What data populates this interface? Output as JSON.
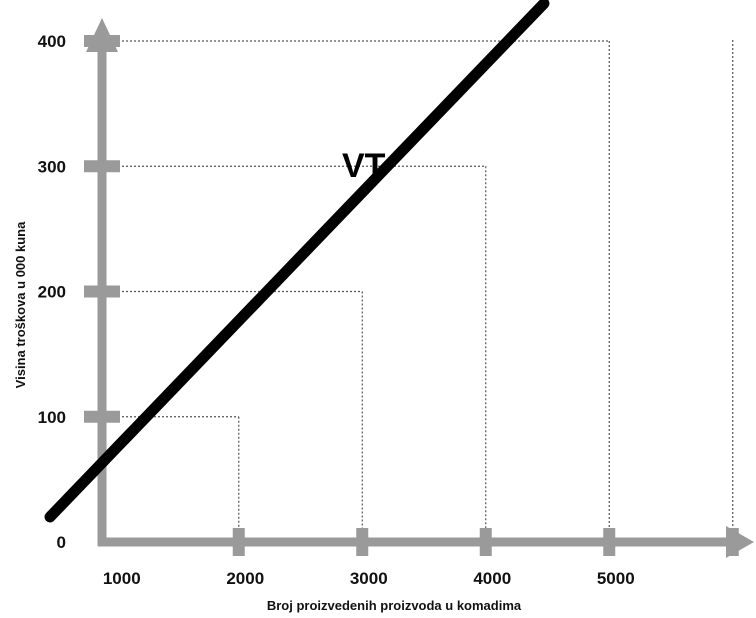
{
  "chart_data": {
    "type": "line",
    "xlabel": "Broj proizvedenih proizvoda u komadima",
    "ylabel": "Visina troškova u 000 kuna",
    "x_ticks": [
      "1000",
      "2000",
      "3000",
      "4000",
      "5000"
    ],
    "y_ticks": [
      "0",
      "100",
      "200",
      "300",
      "400"
    ],
    "series": [
      {
        "name": "VT",
        "x": [
          500,
          4500
        ],
        "y": [
          20,
          430
        ]
      }
    ],
    "guides": [
      {
        "x": 1000,
        "y": 100
      },
      {
        "x": 2000,
        "y": 200
      },
      {
        "x": 3000,
        "y": 300
      },
      {
        "x": 4000,
        "y": 400
      }
    ],
    "extra_vertical_guide_x": 5000,
    "grid": false,
    "colors": {
      "axis": "#9a9a9a",
      "line": "#000000",
      "guide": "#555555"
    }
  }
}
